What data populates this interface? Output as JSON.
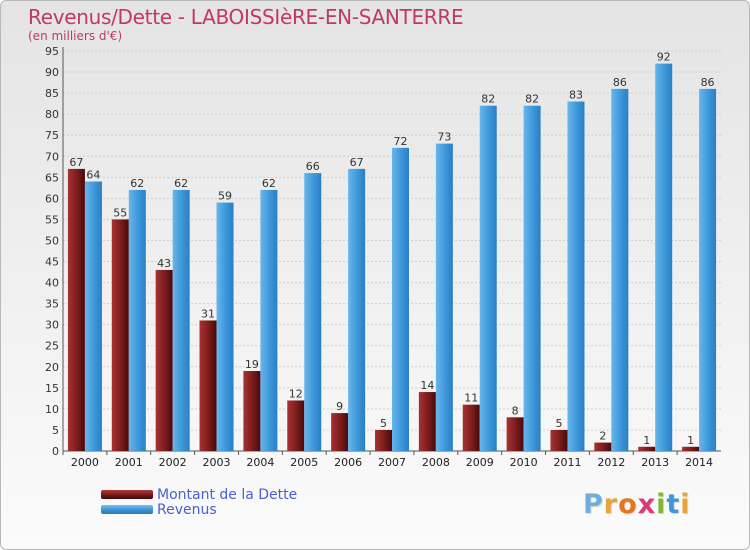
{
  "header": {
    "title": "Revenus/Dette - LABOISSIèRE-EN-SANTERRE",
    "subtitle": "(en milliers d'€)"
  },
  "legend": {
    "items": [
      {
        "label": "Montant de la Dette",
        "color": "#7a1c1c"
      },
      {
        "label": "Revenus",
        "color": "#3d97d9"
      }
    ]
  },
  "brand": {
    "text": "Proxiti",
    "letter_colors": [
      "#6eaed8",
      "#e8a33a",
      "#e3761f",
      "#d83a7a",
      "#7fb832",
      "#3d97d9",
      "#e8a33a"
    ]
  },
  "chart_data": {
    "type": "bar",
    "title": "Revenus/Dette - LABOISSIèRE-EN-SANTERRE",
    "subtitle": "(en milliers d'€)",
    "xlabel": "",
    "ylabel": "",
    "categories": [
      "2000",
      "2001",
      "2002",
      "2003",
      "2004",
      "2005",
      "2006",
      "2007",
      "2008",
      "2009",
      "2010",
      "2011",
      "2012",
      "2013",
      "2014"
    ],
    "series": [
      {
        "name": "Montant de la Dette",
        "color": "#7a1c1c",
        "values": [
          67,
          55,
          43,
          31,
          19,
          12,
          9,
          5,
          14,
          11,
          8,
          5,
          2,
          1,
          1
        ]
      },
      {
        "name": "Revenus",
        "color": "#3d97d9",
        "values": [
          64,
          62,
          62,
          59,
          62,
          66,
          67,
          72,
          73,
          82,
          82,
          83,
          86,
          92,
          86
        ]
      }
    ],
    "ylim": [
      0,
      95
    ],
    "yticks": [
      "0",
      "5",
      "10",
      "15",
      "20",
      "25",
      "30",
      "35",
      "40",
      "45",
      "50",
      "55",
      "60",
      "65",
      "70",
      "75",
      "80",
      "85",
      "90",
      "95"
    ],
    "grid": true,
    "legend_position": "bottom-left"
  }
}
